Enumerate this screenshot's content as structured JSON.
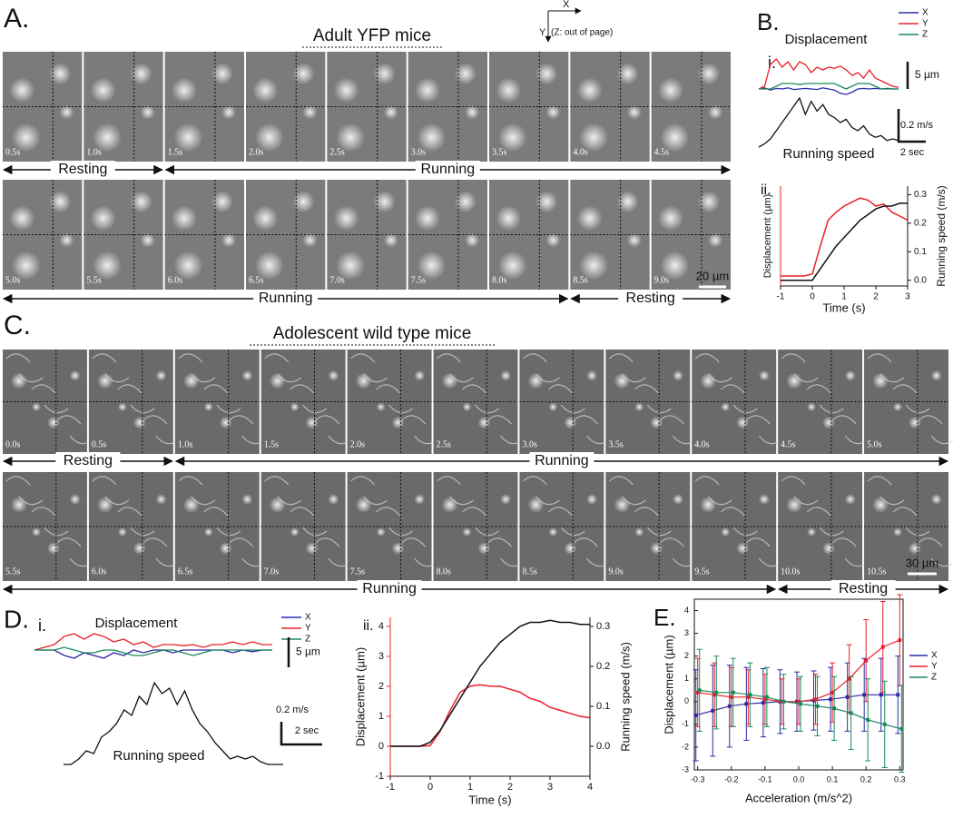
{
  "panel_a": {
    "letter": "A.",
    "title": "Adult YFP mice",
    "axis_key": {
      "x": "X",
      "y": "Y",
      "z": "(Z: out of page)"
    },
    "rows": [
      {
        "times": [
          "0.5s",
          "1.0s",
          "1.5s",
          "2.0s",
          "2.5s",
          "3.0s",
          "3.5s",
          "4.0s",
          "4.5s"
        ],
        "states": [
          "Resting",
          "Running"
        ]
      },
      {
        "times": [
          "5.0s",
          "5.5s",
          "6.0s",
          "6.5s",
          "7.0s",
          "7.5s",
          "8.0s",
          "8.5s",
          "9.0s"
        ],
        "states": [
          "Running",
          "Resting"
        ]
      }
    ],
    "scale_bar": "20 µm"
  },
  "panel_b": {
    "letter": "B."
  },
  "panel_c": {
    "letter": "C.",
    "title": "Adolescent wild type mice",
    "rows": [
      {
        "times": [
          "0.0s",
          "0.5s",
          "1.0s",
          "1.5s",
          "2.0s",
          "2.5s",
          "3.0s",
          "3.5s",
          "4.0s",
          "4.5s",
          "5.0s"
        ],
        "states": [
          "Resting",
          "Running"
        ]
      },
      {
        "times": [
          "5.5s",
          "6.0s",
          "6.5s",
          "7.0s",
          "7.5s",
          "8.0s",
          "8.5s",
          "9.0s",
          "9.5s",
          "10.0s",
          "10.5s"
        ],
        "states": [
          "Running",
          "Resting"
        ]
      }
    ],
    "scale_bar": "30 µm"
  },
  "panel_d": {
    "letter": "D."
  },
  "panel_e": {
    "letter": "E."
  },
  "chart_data": [
    {
      "type": "trace",
      "label": "i.",
      "title": "Displacement",
      "series": [
        {
          "name": "X",
          "color": "#2b2ba8",
          "values": [
            0,
            0.2,
            -0.2,
            0.1,
            0,
            0.2,
            -0.1,
            0,
            0.1,
            0,
            -0.1,
            0.2,
            0,
            -0.2,
            -0.8,
            -1,
            -0.6,
            0,
            0.1,
            0,
            0.1,
            0,
            0.1,
            0,
            0
          ]
        },
        {
          "name": "Y",
          "color": "#e8202a",
          "values": [
            0,
            0.5,
            4.5,
            5.5,
            4,
            5,
            3.5,
            5,
            4.5,
            3,
            4,
            3.5,
            4,
            3.8,
            4.2,
            3.5,
            2.5,
            3,
            2,
            3.5,
            2,
            1.5,
            1,
            0.5,
            0.3
          ]
        },
        {
          "name": "Z",
          "color": "#1a8a5a",
          "values": [
            0,
            0,
            0,
            0.5,
            1,
            1,
            1,
            0.8,
            1,
            1,
            1,
            1,
            1,
            1,
            0.5,
            0,
            0.5,
            1,
            1,
            1,
            0.5,
            0,
            0,
            0,
            0
          ]
        }
      ],
      "speed": {
        "name": "Running speed",
        "color": "#111111",
        "values": [
          0,
          0.02,
          0.05,
          0.1,
          0.15,
          0.2,
          0.25,
          0.3,
          0.2,
          0.28,
          0.22,
          0.26,
          0.2,
          0.18,
          0.15,
          0.17,
          0.12,
          0.1,
          0.13,
          0.08,
          0.06,
          0.07,
          0.04,
          0.05,
          0.04
        ]
      },
      "scale_bars": {
        "displacement": "5 µm",
        "speed": "0.2 m/s",
        "time": "2 sec"
      }
    },
    {
      "type": "line",
      "label": "ii.",
      "x": [
        -1,
        -0.75,
        -0.5,
        -0.25,
        0,
        0.25,
        0.5,
        0.75,
        1,
        1.25,
        1.5,
        1.75,
        2,
        2.25,
        2.5,
        2.75,
        3
      ],
      "xlim": [
        -1,
        3
      ],
      "xticks": [
        -1,
        0,
        1,
        2,
        3
      ],
      "xlabel": "Time (s)",
      "ylim": [
        -0.5,
        4.5
      ],
      "ylabel": "Displacement (µm)",
      "y2lim": [
        -0.02,
        0.33
      ],
      "y2ticks": [
        {
          "value": 0,
          "label": "0.0"
        },
        {
          "value": 0.1,
          "label": "0.1"
        },
        {
          "value": 0.2,
          "label": "0.2"
        },
        {
          "value": 0.3,
          "label": "0.3"
        }
      ],
      "y2label": "Running speed (m/s)",
      "series": [
        {
          "color": "#e8202a",
          "values": [
            0,
            0,
            0,
            0,
            0.1,
            1.5,
            2.8,
            3.2,
            3.5,
            3.7,
            3.9,
            3.8,
            3.5,
            3.6,
            3.2,
            3,
            2.8
          ]
        },
        {
          "color": "#111111",
          "axis": "y2",
          "values": [
            0,
            0,
            0,
            0,
            0,
            0.04,
            0.08,
            0.12,
            0.15,
            0.18,
            0.21,
            0.23,
            0.25,
            0.26,
            0.26,
            0.27,
            0.27
          ]
        }
      ]
    },
    {
      "type": "trace",
      "label": "i.",
      "title": "Displacement",
      "series": [
        {
          "name": "X",
          "color": "#2b2ba8",
          "values": [
            0,
            0,
            0,
            -1,
            -1.5,
            -0.5,
            -1,
            -1.5,
            -0.5,
            -1,
            0,
            -0.5,
            0,
            0,
            -0.5,
            0,
            0,
            0,
            0,
            0,
            -0.5,
            0,
            -0.3,
            0,
            0
          ]
        },
        {
          "name": "Y",
          "color": "#e8202a",
          "values": [
            0,
            0.5,
            1,
            2.5,
            3,
            2,
            3,
            2.5,
            1.5,
            2,
            1,
            1.5,
            0.5,
            1,
            1,
            0.8,
            1,
            0.5,
            1,
            1,
            1.5,
            1,
            1.5,
            1,
            1
          ]
        },
        {
          "name": "Z",
          "color": "#1a8a5a",
          "values": [
            0,
            0,
            0,
            0.5,
            0,
            -0.5,
            -0.5,
            0,
            0,
            -0.5,
            -1,
            -1,
            -0.5,
            0,
            0,
            -0.5,
            -1,
            -0.5,
            0,
            0,
            0,
            0,
            0,
            0,
            0
          ]
        }
      ],
      "speed": {
        "name": "Running speed",
        "color": "#111111",
        "values": [
          0,
          0,
          0.02,
          0.05,
          0.04,
          0.1,
          0.12,
          0.15,
          0.2,
          0.18,
          0.25,
          0.22,
          0.3,
          0.26,
          0.28,
          0.22,
          0.27,
          0.2,
          0.15,
          0.12,
          0.08,
          0.05,
          0.02,
          0.03,
          0.02,
          0.03,
          0.01,
          0,
          0,
          0
        ]
      },
      "scale_bars": {
        "displacement": "5 µm",
        "speed": "0.2 m/s",
        "time": "2 sec"
      }
    },
    {
      "type": "line",
      "label": "ii.",
      "x": [
        -1,
        -0.75,
        -0.5,
        -0.25,
        0,
        0.25,
        0.5,
        0.75,
        1,
        1.25,
        1.5,
        1.75,
        2,
        2.25,
        2.5,
        2.75,
        3,
        3.25,
        3.5,
        3.75,
        4
      ],
      "xlim": [
        -1,
        4
      ],
      "xticks": [
        -1,
        0,
        1,
        2,
        3,
        4
      ],
      "xlabel": "Time (s)",
      "ylim": [
        -1,
        4.3
      ],
      "yticks": [
        -1,
        0,
        1,
        2,
        3,
        4
      ],
      "ylabel": "Displacement (µm)",
      "y2lim": [
        -0.075,
        0.3225
      ],
      "y2ticks": [
        {
          "value": 0,
          "label": "0.0"
        },
        {
          "value": 0.1,
          "label": "0.1"
        },
        {
          "value": 0.2,
          "label": "0.2"
        },
        {
          "value": 0.3,
          "label": "0.3"
        }
      ],
      "y2label": "Running speed (m/s)",
      "series": [
        {
          "color": "#e8202a",
          "values": [
            0,
            0,
            0,
            0,
            0.02,
            0.5,
            1.2,
            1.8,
            2,
            2.05,
            2,
            2,
            1.9,
            1.8,
            1.6,
            1.5,
            1.3,
            1.2,
            1.1,
            1,
            0.95
          ]
        },
        {
          "color": "#111111",
          "axis": "y2",
          "values": [
            0,
            0,
            0,
            0,
            0.01,
            0.04,
            0.08,
            0.12,
            0.16,
            0.2,
            0.23,
            0.26,
            0.28,
            0.3,
            0.31,
            0.31,
            0.315,
            0.31,
            0.31,
            0.305,
            0.305
          ]
        }
      ]
    },
    {
      "type": "errorbar",
      "x": [
        -0.3,
        -0.25,
        -0.2,
        -0.15,
        -0.1,
        -0.05,
        0,
        0.05,
        0.1,
        0.15,
        0.2,
        0.25,
        0.3
      ],
      "xlim": [
        -0.31,
        0.31
      ],
      "xticks": [
        {
          "value": -0.3,
          "label": "-0.3"
        },
        {
          "value": -0.2,
          "label": "-0.2"
        },
        {
          "value": -0.1,
          "label": "-0.1"
        },
        {
          "value": 0,
          "label": "0.0"
        },
        0.1,
        0.2,
        0.3
      ],
      "xlabel": "Acceleration (m/s^2)",
      "ylim": [
        -3,
        4.5
      ],
      "yticks": [
        -3,
        -2,
        -1,
        0,
        1,
        2,
        3,
        4
      ],
      "ylabel": "Displacement (µm)",
      "series": [
        {
          "name": "X",
          "color": "#2b2ba8",
          "values": [
            -0.6,
            -0.4,
            -0.2,
            -0.1,
            -0.05,
            0,
            0,
            0.05,
            0.1,
            0.2,
            0.3,
            0.3,
            0.3
          ],
          "errors": [
            2,
            2,
            1.8,
            1.6,
            1.5,
            1.4,
            1.3,
            1.3,
            1.4,
            1.5,
            1.6,
            1.6,
            1.7
          ]
        },
        {
          "name": "Y",
          "color": "#e8202a",
          "values": [
            0.4,
            0.3,
            0.2,
            0.2,
            0.1,
            0,
            0,
            0.1,
            0.4,
            1,
            1.8,
            2.4,
            2.7
          ],
          "errors": [
            1.5,
            1.4,
            1.3,
            1.2,
            1.1,
            1,
            1,
            1.1,
            1.3,
            1.5,
            1.8,
            2,
            2
          ]
        },
        {
          "name": "Z",
          "color": "#1a8a5a",
          "values": [
            0.5,
            0.4,
            0.4,
            0.3,
            0.2,
            0,
            -0.1,
            -0.2,
            -0.3,
            -0.5,
            -0.8,
            -1,
            -1.2
          ],
          "errors": [
            1.8,
            1.6,
            1.5,
            1.4,
            1.3,
            1.2,
            1.2,
            1.3,
            1.4,
            1.6,
            1.8,
            1.9,
            1.9
          ]
        }
      ]
    }
  ]
}
